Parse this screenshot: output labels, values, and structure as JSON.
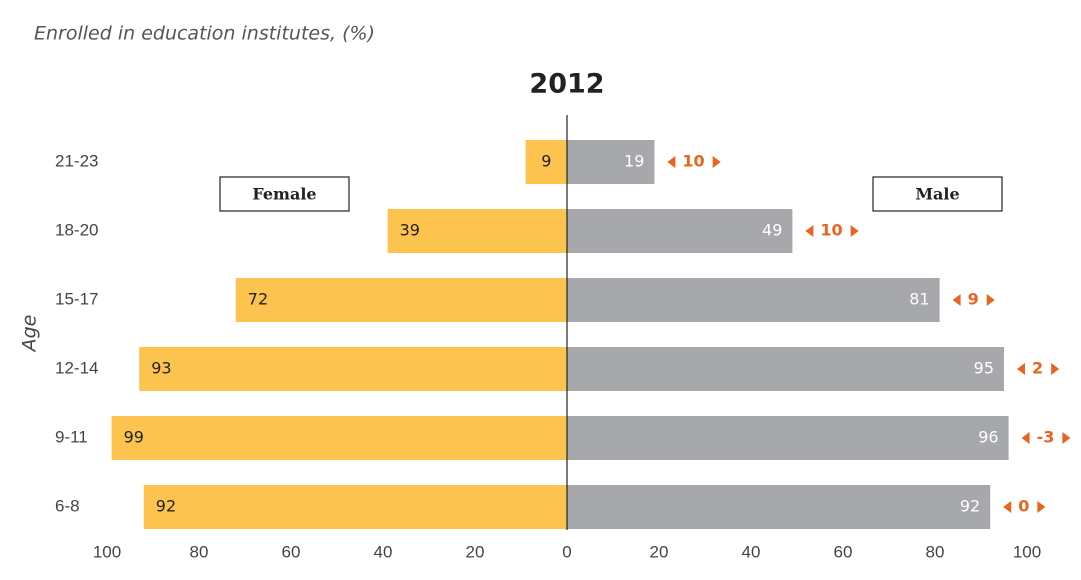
{
  "chart_data": {
    "type": "pyramid",
    "subtitle": "Enrolled in education institutes, (%)",
    "title": "2012",
    "y_label": "Age",
    "categories": [
      "21-23",
      "18-20",
      "15-17",
      "12-14",
      "9-11",
      "6-8"
    ],
    "series": [
      {
        "name": "Female",
        "color": "#fcc44f",
        "side": "left",
        "values": [
          9,
          39,
          72,
          93,
          99,
          92
        ]
      },
      {
        "name": "Male",
        "color": "#a7a8ab",
        "side": "right",
        "values": [
          19,
          49,
          81,
          95,
          96,
          92
        ]
      }
    ],
    "annotations": [
      10,
      10,
      9,
      2,
      -3,
      0
    ],
    "annotation_color": "#e8651f",
    "xlim": [
      -100,
      100
    ],
    "xticks": [
      {
        "value": -100,
        "label": "100"
      },
      {
        "value": -80,
        "label": "80"
      },
      {
        "value": -60,
        "label": "60"
      },
      {
        "value": -40,
        "label": "40"
      },
      {
        "value": -20,
        "label": "20"
      },
      0,
      20,
      40,
      60,
      80,
      100
    ]
  }
}
